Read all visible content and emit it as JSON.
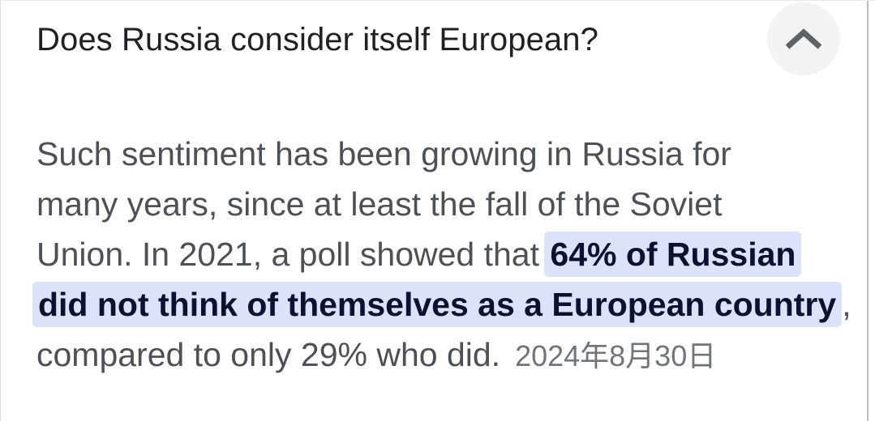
{
  "question": {
    "text": "Does Russia consider itself European?"
  },
  "collapse_button": {
    "icon": "chevron-up",
    "state": "expanded"
  },
  "answer": {
    "full_text": "Such sentiment has been growing in Russia for many years, since at least the fall of the Soviet Union. In 2021, a poll showed that 64% of Russian did not think of themselves as a European country, compared to only 29% who did.",
    "highlighted_text": "64% of Russian did not think of themselves as a European country",
    "date": "2024年8月30日",
    "lines": [
      {
        "segments": [
          {
            "text": "Such sentiment has been growing in Russia for",
            "style": "normal"
          }
        ]
      },
      {
        "segments": [
          {
            "text": "many years, since at least the fall of the Soviet",
            "style": "normal"
          }
        ]
      },
      {
        "segments": [
          {
            "text": "Union. In 2021, a poll showed that ",
            "style": "normal"
          },
          {
            "text": "64% of Russian",
            "style": "highlight"
          }
        ]
      },
      {
        "segments": [
          {
            "text": "did not think of themselves as a European country",
            "style": "highlight"
          },
          {
            "text": ",",
            "style": "normal"
          }
        ]
      },
      {
        "segments": [
          {
            "text": "compared to only 29% who did.",
            "style": "normal"
          },
          {
            "text": "2024年8月30日",
            "style": "date"
          }
        ]
      }
    ]
  },
  "colors": {
    "question_text": "#202124",
    "body_text": "#4d5156",
    "highlight_background": "#dbe2f9",
    "highlight_text": "#0d1130",
    "date_text": "#70757a",
    "button_circle_background": "#f1f3f4",
    "chevron_icon": "#5f6368",
    "top_divider": "#e9e9e9",
    "scrollbar_track": "#bdc1c6"
  }
}
